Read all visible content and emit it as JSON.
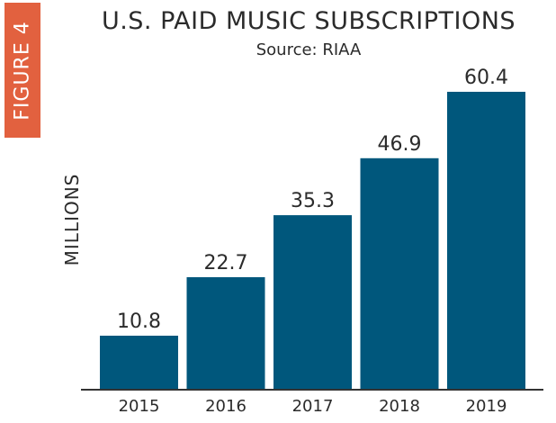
{
  "figure_label": "FIGURE 4",
  "colors": {
    "bar": "#00577c",
    "figure_tag": "#e2613f",
    "text": "#2b2b2b",
    "axis": "#333333"
  },
  "chart_data": {
    "type": "bar",
    "title": "U.S. PAID MUSIC SUBSCRIPTIONS",
    "subtitle": "Source: RIAA",
    "xlabel": "",
    "ylabel": "MILLIONS",
    "categories": [
      "2015",
      "2016",
      "2017",
      "2018",
      "2019"
    ],
    "values": [
      10.8,
      22.7,
      35.3,
      46.9,
      60.4
    ],
    "data_labels": [
      "10.8",
      "22.7",
      "35.3",
      "46.9",
      "60.4"
    ],
    "ylim": [
      0,
      60.4
    ],
    "grid": false,
    "legend": "none"
  }
}
